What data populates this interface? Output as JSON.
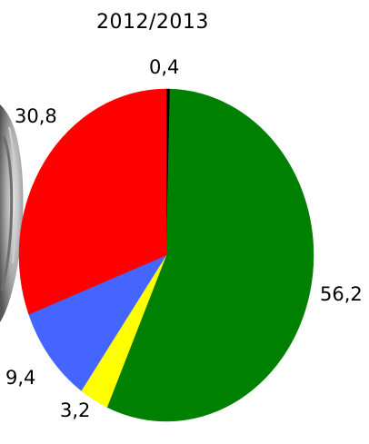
{
  "chart_data": {
    "type": "pie",
    "title": "2012/2013",
    "slices": [
      {
        "label": "0,4",
        "value": 0.4,
        "color": "#000000"
      },
      {
        "label": "56,2",
        "value": 56.2,
        "color": "#008000"
      },
      {
        "label": "3,2",
        "value": 3.2,
        "color": "#ffff00"
      },
      {
        "label": "9,4",
        "value": 9.4,
        "color": "#4466ff"
      },
      {
        "label": "30,8",
        "value": 30.8,
        "color": "#ff0000"
      }
    ],
    "start": "12 o'clock",
    "direction": "clockwise",
    "legend": "none"
  },
  "background_photo": {
    "icon": "coin-photo-fragment"
  }
}
